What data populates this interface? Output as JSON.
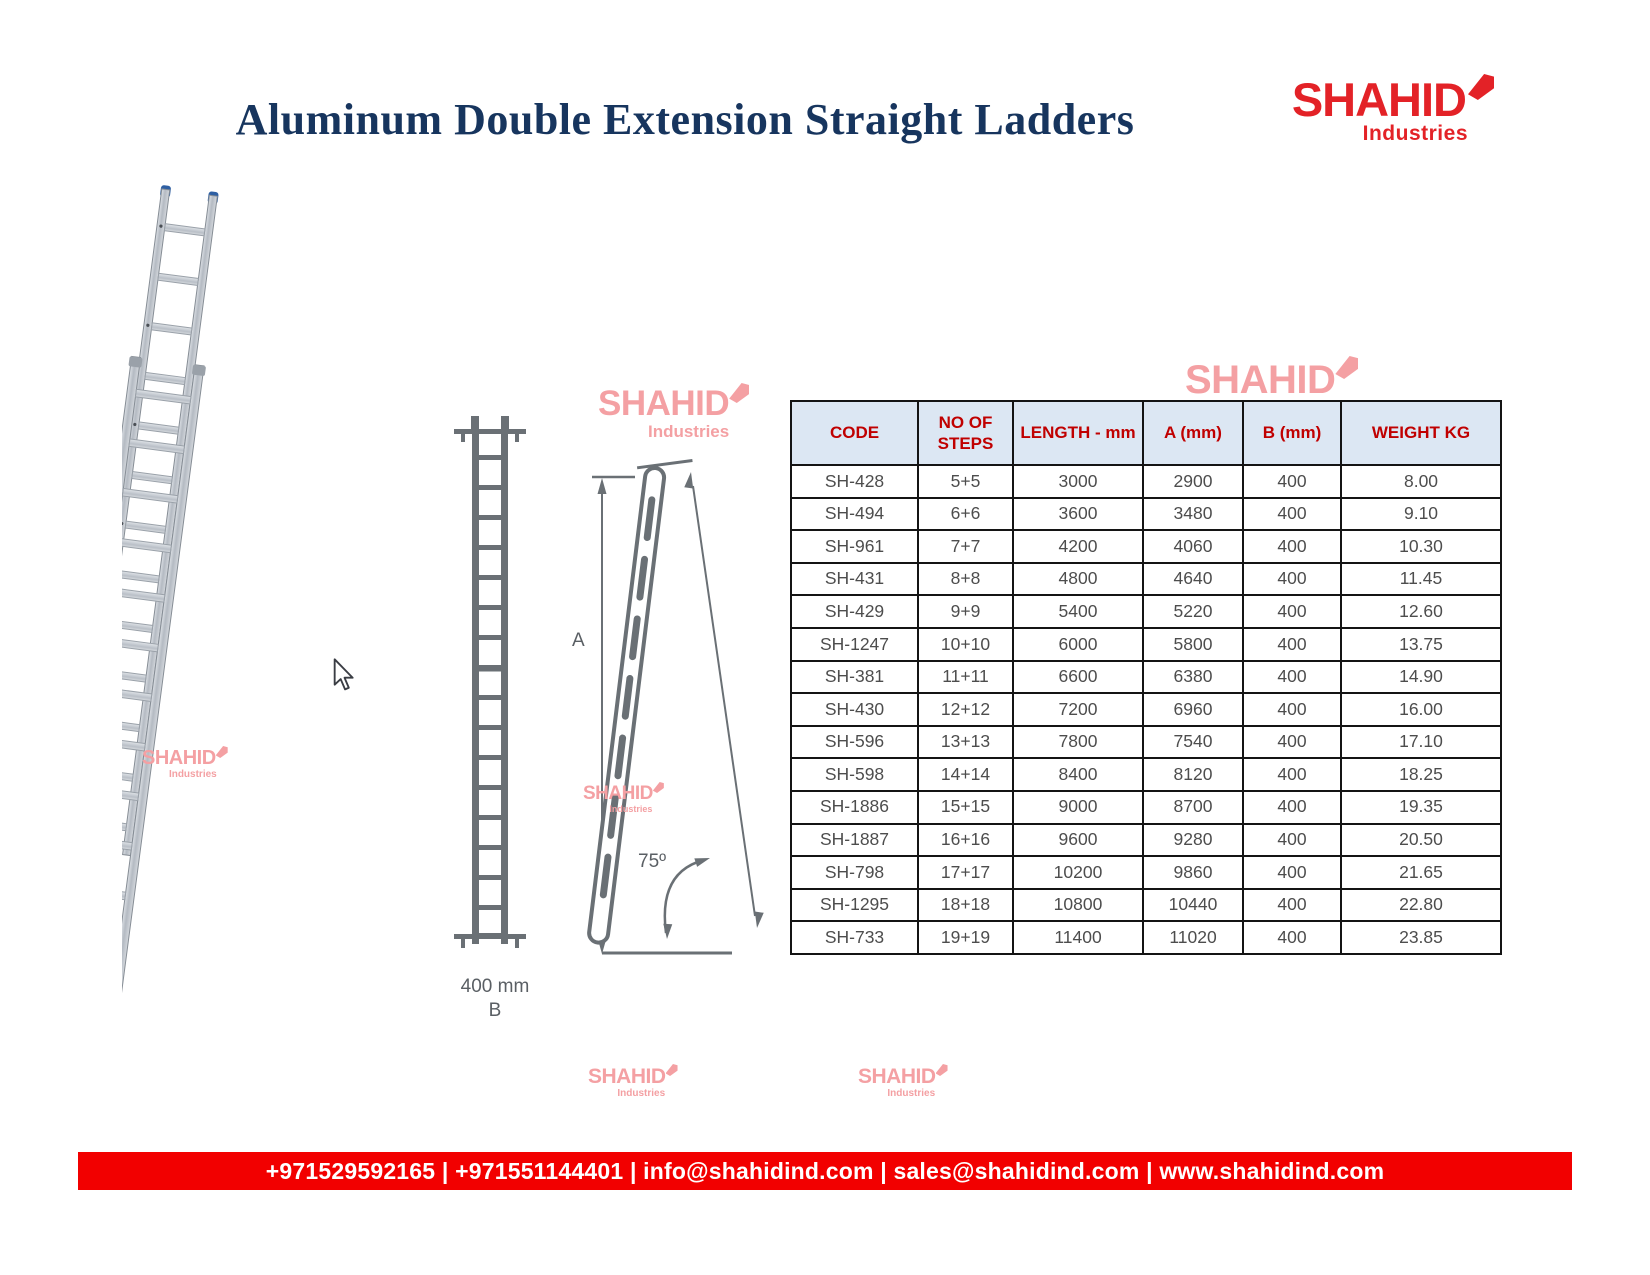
{
  "page": {
    "title": "Aluminum Double Extension Straight Ladders"
  },
  "brand": {
    "name": "SHAHID",
    "tagline": "Industries",
    "red": "#E32227",
    "watermark_pink": "#F4A0A3"
  },
  "diagram": {
    "height_letter": "A",
    "width_label": "400 mm",
    "width_letter": "B",
    "angle_label": "75º"
  },
  "table": {
    "header_bg": "#DCE7F3",
    "header_text_color": "#C00000",
    "headers": [
      "CODE",
      "NO OF STEPS",
      "LENGTH - mm",
      "A (mm)",
      "B (mm)",
      "WEIGHT KG"
    ],
    "rows": [
      [
        "SH-428",
        "5+5",
        "3000",
        "2900",
        "400",
        "8.00"
      ],
      [
        "SH-494",
        "6+6",
        "3600",
        "3480",
        "400",
        "9.10"
      ],
      [
        "SH-961",
        "7+7",
        "4200",
        "4060",
        "400",
        "10.30"
      ],
      [
        "SH-431",
        "8+8",
        "4800",
        "4640",
        "400",
        "11.45"
      ],
      [
        "SH-429",
        "9+9",
        "5400",
        "5220",
        "400",
        "12.60"
      ],
      [
        "SH-1247",
        "10+10",
        "6000",
        "5800",
        "400",
        "13.75"
      ],
      [
        "SH-381",
        "11+11",
        "6600",
        "6380",
        "400",
        "14.90"
      ],
      [
        "SH-430",
        "12+12",
        "7200",
        "6960",
        "400",
        "16.00"
      ],
      [
        "SH-596",
        "13+13",
        "7800",
        "7540",
        "400",
        "17.10"
      ],
      [
        "SH-598",
        "14+14",
        "8400",
        "8120",
        "400",
        "18.25"
      ],
      [
        "SH-1886",
        "15+15",
        "9000",
        "8700",
        "400",
        "19.35"
      ],
      [
        "SH-1887",
        "16+16",
        "9600",
        "9280",
        "400",
        "20.50"
      ],
      [
        "SH-798",
        "17+17",
        "10200",
        "9860",
        "400",
        "21.65"
      ],
      [
        "SH-1295",
        "18+18",
        "10800",
        "10440",
        "400",
        "22.80"
      ],
      [
        "SH-733",
        "19+19",
        "11400",
        "11020",
        "400",
        "23.85"
      ]
    ]
  },
  "footer": {
    "bg": "#F20000",
    "text": "+971529592165 | +971551144401 | info@shahidind.com | sales@shahidind.com | www.shahidind.com"
  }
}
